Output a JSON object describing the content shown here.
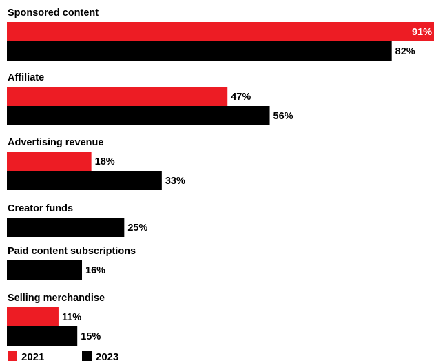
{
  "chart_data": {
    "type": "bar",
    "orientation": "horizontal",
    "title": "",
    "xlabel": "",
    "ylabel": "",
    "xlim": [
      0,
      91
    ],
    "grid": false,
    "legend_position": "bottom-left",
    "value_format": "{v}%",
    "categories": [
      "Sponsored content",
      "Affiliate",
      "Advertising revenue",
      "Creator funds",
      "Paid content subscriptions",
      "Selling merchandise"
    ],
    "series": [
      {
        "name": "2021",
        "color": "#ed1c24",
        "values": [
          91,
          47,
          18,
          null,
          null,
          11
        ]
      },
      {
        "name": "2023",
        "color": "#000000",
        "values": [
          82,
          56,
          33,
          25,
          16,
          15
        ]
      }
    ]
  }
}
